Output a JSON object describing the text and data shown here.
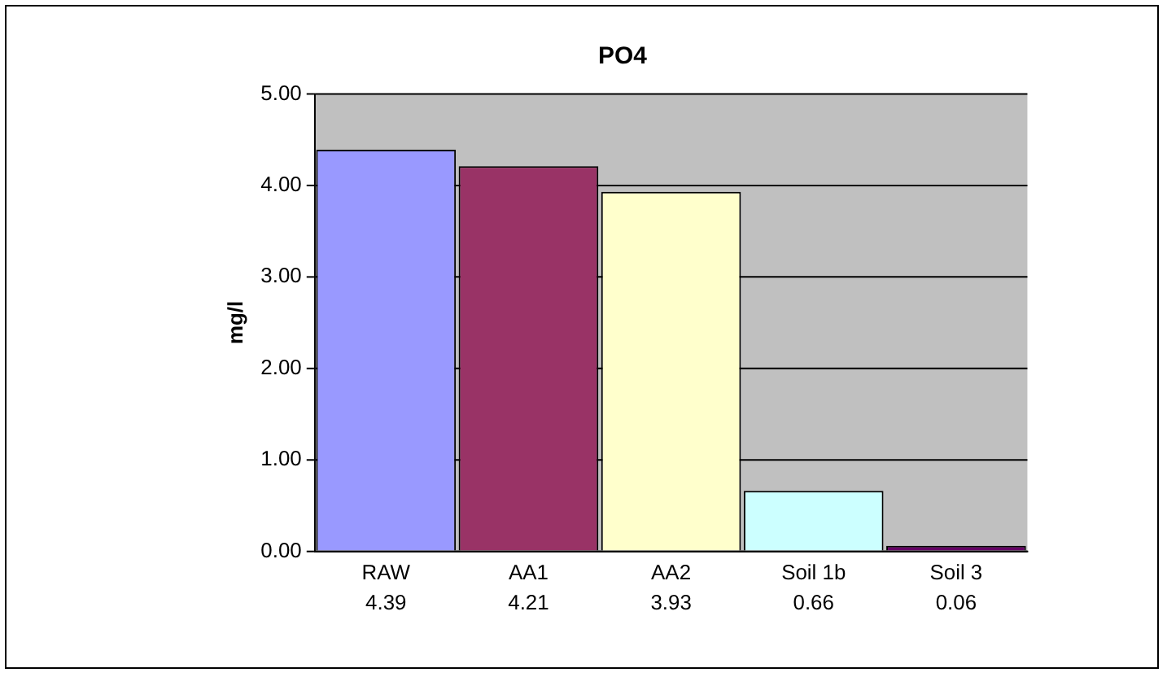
{
  "chart_data": {
    "type": "bar",
    "title": "PO4",
    "ylabel": "mg/l",
    "categories": [
      "RAW",
      "AA1",
      "AA2",
      "Soil 1b",
      "Soil 3"
    ],
    "values": [
      4.39,
      4.21,
      3.93,
      0.66,
      0.06
    ],
    "colors": [
      "#9999ff",
      "#993366",
      "#ffffcc",
      "#ccffff",
      "#660066"
    ],
    "ylim": [
      0,
      5
    ],
    "yticks": [
      {
        "value": 0,
        "label": "0.00"
      },
      {
        "value": 1,
        "label": "1.00"
      },
      {
        "value": 2,
        "label": "2.00"
      },
      {
        "value": 3,
        "label": "3.00"
      },
      {
        "value": 4,
        "label": "4.00"
      },
      {
        "value": 5,
        "label": "5.00"
      }
    ],
    "grid": "y",
    "legend": false,
    "data_labels": true
  }
}
